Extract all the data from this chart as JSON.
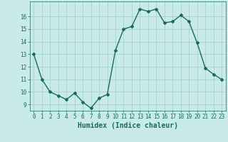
{
  "x": [
    0,
    1,
    2,
    3,
    4,
    5,
    6,
    7,
    8,
    9,
    10,
    11,
    12,
    13,
    14,
    15,
    16,
    17,
    18,
    19,
    20,
    21,
    22,
    23
  ],
  "y": [
    13,
    11,
    10,
    9.7,
    9.4,
    9.9,
    9.2,
    8.7,
    9.5,
    9.8,
    13.3,
    15.0,
    15.2,
    16.6,
    16.4,
    16.6,
    15.5,
    15.6,
    16.1,
    15.6,
    13.9,
    11.9,
    11.4,
    11.0
  ],
  "line_color": "#1a6b5e",
  "marker": "D",
  "marker_size": 2.0,
  "bg_color": "#c8eae8",
  "grid_color": "#9ed0cc",
  "xlabel": "Humidex (Indice chaleur)",
  "ylim": [
    8.5,
    17.2
  ],
  "xlim": [
    -0.5,
    23.5
  ],
  "yticks": [
    9,
    10,
    11,
    12,
    13,
    14,
    15,
    16
  ],
  "xticks": [
    0,
    1,
    2,
    3,
    4,
    5,
    6,
    7,
    8,
    9,
    10,
    11,
    12,
    13,
    14,
    15,
    16,
    17,
    18,
    19,
    20,
    21,
    22,
    23
  ],
  "font_color": "#1a6b5e",
  "tick_labelsize": 5.5,
  "xlabel_fontsize": 7.0,
  "linewidth": 1.0
}
